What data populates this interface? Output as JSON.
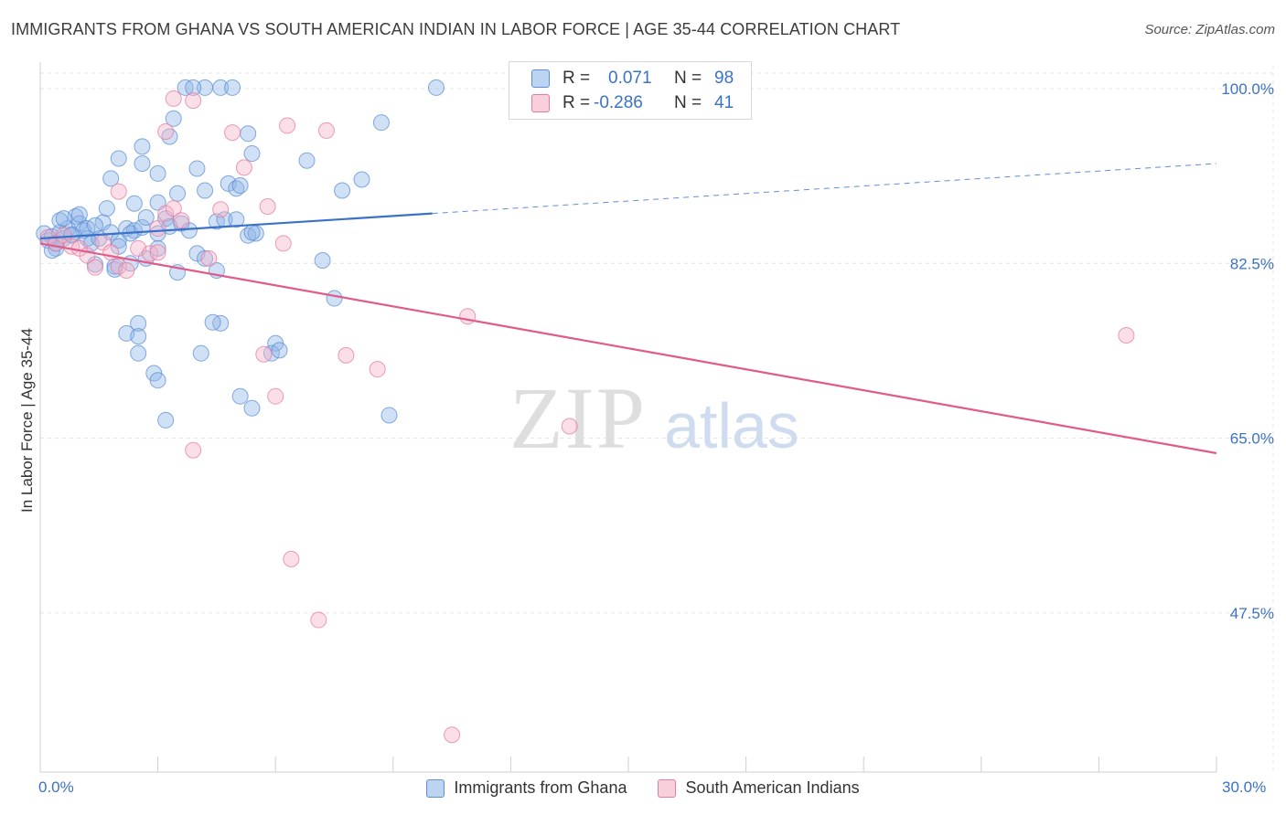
{
  "title": "IMMIGRANTS FROM GHANA VS SOUTH AMERICAN INDIAN IN LABOR FORCE | AGE 35-44 CORRELATION CHART",
  "source": "Source: ZipAtlas.com",
  "watermark": {
    "zip": "ZIP",
    "atlas": "atlas"
  },
  "legend_box": {
    "rows": [
      {
        "r_label": "R =",
        "r_value": "0.071",
        "n_label": "N =",
        "n_value": "98"
      },
      {
        "r_label": "R =",
        "r_value": "-0.286",
        "n_label": "N =",
        "n_value": "41"
      }
    ]
  },
  "chart_data": {
    "type": "scatter",
    "title": "IMMIGRANTS FROM GHANA VS SOUTH AMERICAN INDIAN IN LABOR FORCE | AGE 35-44 CORRELATION CHART",
    "xlabel": "",
    "ylabel": "In Labor Force | Age 35-44",
    "xlim": [
      0,
      30
    ],
    "ylim": [
      32,
      102
    ],
    "x_tick_labels": [
      "0.0%",
      "30.0%"
    ],
    "y_ticks": [
      100,
      82.5,
      65,
      47.5
    ],
    "y_tick_labels": [
      "100.0%",
      "82.5%",
      "65.0%",
      "47.5%"
    ],
    "grid": true,
    "legend_position": "bottom",
    "series": [
      {
        "name": "Immigrants from Ghana",
        "color": "#8fb4e8",
        "edge": "#5b8fd6",
        "line_color": "#3a72c8",
        "trend": {
          "x0": 0,
          "y0": 85.0,
          "x1": 10.0,
          "y1": 87.5,
          "dash_x1": 30,
          "dash_y1": 92.5
        },
        "points": [
          [
            0.1,
            85.5
          ],
          [
            0.2,
            84.8
          ],
          [
            0.3,
            85.2
          ],
          [
            0.4,
            84.0
          ],
          [
            0.5,
            85.6
          ],
          [
            0.6,
            85.0
          ],
          [
            0.7,
            86.0
          ],
          [
            0.8,
            85.3
          ],
          [
            0.5,
            86.8
          ],
          [
            0.9,
            87.2
          ],
          [
            1.0,
            86.5
          ],
          [
            1.1,
            85.8
          ],
          [
            1.2,
            85.0
          ],
          [
            0.6,
            87.0
          ],
          [
            1.3,
            84.5
          ],
          [
            1.0,
            87.4
          ],
          [
            1.5,
            85.0
          ],
          [
            1.6,
            86.6
          ],
          [
            1.8,
            85.6
          ],
          [
            2.0,
            84.8
          ],
          [
            1.7,
            88.0
          ],
          [
            2.2,
            86.0
          ],
          [
            2.4,
            85.8
          ],
          [
            0.3,
            83.8
          ],
          [
            0.4,
            84.5
          ],
          [
            1.2,
            86.0
          ],
          [
            1.4,
            86.3
          ],
          [
            1.9,
            82.2
          ],
          [
            2.3,
            82.5
          ],
          [
            2.7,
            83.0
          ],
          [
            1.4,
            82.4
          ],
          [
            1.9,
            81.9
          ],
          [
            2.0,
            84.2
          ],
          [
            2.3,
            85.5
          ],
          [
            0.8,
            85.4
          ],
          [
            3.0,
            84.0
          ],
          [
            3.0,
            88.6
          ],
          [
            3.2,
            87.0
          ],
          [
            3.3,
            86.2
          ],
          [
            3.5,
            89.5
          ],
          [
            3.6,
            86.5
          ],
          [
            3.8,
            85.8
          ],
          [
            3.0,
            85.5
          ],
          [
            2.6,
            86.1
          ],
          [
            2.7,
            87.1
          ],
          [
            4.2,
            89.8
          ],
          [
            4.5,
            86.7
          ],
          [
            4.7,
            86.9
          ],
          [
            4.8,
            90.5
          ],
          [
            5.3,
            85.3
          ],
          [
            5.0,
            90.0
          ],
          [
            5.5,
            85.5
          ],
          [
            3.5,
            81.6
          ],
          [
            4.0,
            83.5
          ],
          [
            4.2,
            83.0
          ],
          [
            4.5,
            81.8
          ],
          [
            5.4,
            93.5
          ],
          [
            6.0,
            74.5
          ],
          [
            5.9,
            73.5
          ],
          [
            6.1,
            73.8
          ],
          [
            4.6,
            76.5
          ],
          [
            7.2,
            82.8
          ],
          [
            7.7,
            89.8
          ],
          [
            8.2,
            90.9
          ],
          [
            2.5,
            76.5
          ],
          [
            2.5,
            73.5
          ],
          [
            2.2,
            75.5
          ],
          [
            2.5,
            75.2
          ],
          [
            2.9,
            71.5
          ],
          [
            3.0,
            70.8
          ],
          [
            4.1,
            73.5
          ],
          [
            4.4,
            76.6
          ],
          [
            3.2,
            66.8
          ],
          [
            5.1,
            69.2
          ],
          [
            5.4,
            68.0
          ],
          [
            7.5,
            79.0
          ],
          [
            8.9,
            67.3
          ],
          [
            5.3,
            95.5
          ],
          [
            3.4,
            97.0
          ],
          [
            3.3,
            95.2
          ],
          [
            2.6,
            94.2
          ],
          [
            2.6,
            92.5
          ],
          [
            4.0,
            92.0
          ],
          [
            3.0,
            91.5
          ],
          [
            2.0,
            93.0
          ],
          [
            1.8,
            91.0
          ],
          [
            2.4,
            88.5
          ],
          [
            5.4,
            85.6
          ],
          [
            5.1,
            90.3
          ],
          [
            6.8,
            92.8
          ],
          [
            8.7,
            96.6
          ],
          [
            10.1,
            100.1
          ],
          [
            3.7,
            100.1
          ],
          [
            4.2,
            100.1
          ],
          [
            4.6,
            100.1
          ],
          [
            4.9,
            100.1
          ],
          [
            3.9,
            100.1
          ],
          [
            5.0,
            86.9
          ]
        ]
      },
      {
        "name": "South American Indians",
        "color": "#f5b3c8",
        "edge": "#e8799f",
        "line_color": "#e05a8a",
        "trend": {
          "x0": 0,
          "y0": 84.5,
          "x1": 30,
          "y1": 63.5
        },
        "points": [
          [
            0.2,
            85.1
          ],
          [
            0.4,
            84.5
          ],
          [
            0.6,
            85.3
          ],
          [
            0.8,
            84.2
          ],
          [
            1.0,
            84.0
          ],
          [
            1.2,
            83.3
          ],
          [
            1.4,
            82.1
          ],
          [
            1.6,
            84.6
          ],
          [
            1.8,
            83.6
          ],
          [
            2.0,
            82.2
          ],
          [
            2.2,
            81.8
          ],
          [
            2.5,
            84.0
          ],
          [
            2.8,
            83.5
          ],
          [
            3.0,
            86.0
          ],
          [
            3.2,
            87.5
          ],
          [
            3.4,
            88.0
          ],
          [
            3.6,
            86.8
          ],
          [
            3.0,
            83.6
          ],
          [
            4.3,
            83.0
          ],
          [
            4.6,
            87.9
          ],
          [
            2.0,
            89.7
          ],
          [
            3.2,
            95.7
          ],
          [
            3.4,
            99.0
          ],
          [
            3.9,
            98.8
          ],
          [
            4.9,
            95.6
          ],
          [
            5.2,
            92.1
          ],
          [
            5.8,
            88.2
          ],
          [
            6.2,
            84.5
          ],
          [
            6.3,
            96.3
          ],
          [
            7.3,
            95.8
          ],
          [
            6.0,
            69.2
          ],
          [
            5.7,
            73.4
          ],
          [
            7.8,
            73.3
          ],
          [
            8.6,
            71.9
          ],
          [
            3.9,
            63.8
          ],
          [
            6.4,
            52.9
          ],
          [
            7.1,
            46.8
          ],
          [
            10.5,
            35.3
          ],
          [
            10.9,
            77.2
          ],
          [
            13.5,
            66.2
          ],
          [
            27.7,
            75.3
          ]
        ]
      }
    ]
  }
}
